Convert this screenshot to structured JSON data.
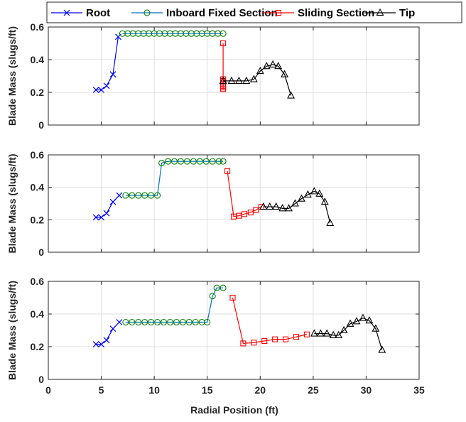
{
  "chart_data": {
    "type": "line",
    "legend": {
      "placement": "top",
      "entries": [
        {
          "name": "Root",
          "color": "#0000ff",
          "marker": "x"
        },
        {
          "name": "Inboard Fixed Section",
          "color": "#0072bd",
          "marker_color": "#008000",
          "marker": "circle"
        },
        {
          "name": "Sliding Section",
          "color": "#ff0000",
          "marker": "square"
        },
        {
          "name": "Tip",
          "color": "#000000",
          "marker": "triangle"
        }
      ]
    },
    "xlabel": "Radial Position (ft)",
    "xlim": [
      0,
      35
    ],
    "xticks": [
      0,
      5,
      10,
      15,
      20,
      25,
      30,
      35
    ],
    "grid": true,
    "subplots": [
      {
        "ylabel": "Blade Mass (slugs/ft)",
        "ylim": [
          0,
          0.6
        ],
        "yticks": [
          0,
          0.2,
          0.4,
          0.6
        ],
        "series": [
          {
            "name": "Root",
            "x": [
              4.5,
              5.0,
              5.5,
              6.1,
              6.6
            ],
            "y": [
              0.215,
              0.215,
              0.24,
              0.31,
              0.54
            ]
          },
          {
            "name": "Inboard Fixed Section",
            "x": [
              7.0,
              7.5,
              8.0,
              8.5,
              9.0,
              9.5,
              10.0,
              10.5,
              11.0,
              11.5,
              12.0,
              12.5,
              13.0,
              13.5,
              14.0,
              14.5,
              15.0,
              15.5,
              16.0,
              16.5
            ],
            "y": [
              0.56,
              0.56,
              0.56,
              0.56,
              0.56,
              0.56,
              0.56,
              0.56,
              0.56,
              0.56,
              0.56,
              0.56,
              0.56,
              0.56,
              0.56,
              0.56,
              0.56,
              0.56,
              0.56,
              0.56
            ]
          },
          {
            "name": "Sliding Section",
            "x": [
              16.5,
              16.5,
              16.5,
              16.5,
              16.5,
              16.5,
              16.5,
              16.5
            ],
            "y": [
              0.5,
              0.28,
              0.27,
              0.26,
              0.25,
              0.24,
              0.23,
              0.22
            ]
          },
          {
            "name": "Tip",
            "x": [
              16.5,
              17.3,
              18.0,
              18.7,
              19.4,
              20.0,
              20.6,
              21.2,
              21.7,
              22.3,
              22.9
            ],
            "y": [
              0.27,
              0.27,
              0.27,
              0.27,
              0.28,
              0.33,
              0.36,
              0.37,
              0.36,
              0.31,
              0.18
            ]
          }
        ]
      },
      {
        "ylabel": "Blade Mass (slugs/ft)",
        "ylim": [
          0,
          0.6
        ],
        "yticks": [
          0,
          0.2,
          0.4,
          0.6
        ],
        "series": [
          {
            "name": "Root",
            "x": [
              4.5,
              5.0,
              5.5,
              6.1,
              6.7
            ],
            "y": [
              0.215,
              0.215,
              0.24,
              0.31,
              0.35
            ]
          },
          {
            "name": "Inboard Fixed Section",
            "x": [
              7.3,
              7.9,
              8.5,
              9.1,
              9.7,
              10.3,
              10.7,
              11.3,
              11.9,
              12.5,
              13.1,
              13.7,
              14.3,
              14.9,
              15.5,
              16.1,
              16.5
            ],
            "y": [
              0.35,
              0.35,
              0.35,
              0.35,
              0.35,
              0.35,
              0.55,
              0.56,
              0.56,
              0.56,
              0.56,
              0.56,
              0.56,
              0.56,
              0.56,
              0.56,
              0.56
            ]
          },
          {
            "name": "Sliding Section",
            "x": [
              16.9,
              17.5,
              18.0,
              18.5,
              19.1,
              19.6,
              20.1
            ],
            "y": [
              0.5,
              0.22,
              0.225,
              0.235,
              0.245,
              0.26,
              0.28
            ]
          },
          {
            "name": "Tip",
            "x": [
              20.3,
              20.9,
              21.5,
              22.1,
              22.7,
              23.3,
              23.9,
              24.5,
              25.1,
              25.6,
              26.1,
              26.6
            ],
            "y": [
              0.28,
              0.28,
              0.28,
              0.27,
              0.27,
              0.3,
              0.33,
              0.355,
              0.375,
              0.36,
              0.31,
              0.18
            ]
          }
        ]
      },
      {
        "ylabel": "Blade Mass (slugs/ft)",
        "ylim": [
          0,
          0.6
        ],
        "yticks": [
          0,
          0.2,
          0.4,
          0.6
        ],
        "series": [
          {
            "name": "Root",
            "x": [
              4.5,
              5.0,
              5.5,
              6.1,
              6.7
            ],
            "y": [
              0.215,
              0.215,
              0.24,
              0.31,
              0.35
            ]
          },
          {
            "name": "Inboard Fixed Section",
            "x": [
              7.3,
              7.9,
              8.5,
              9.1,
              9.7,
              10.3,
              10.9,
              11.5,
              12.1,
              12.7,
              13.3,
              13.9,
              14.5,
              15.0,
              15.5,
              15.9,
              16.5
            ],
            "y": [
              0.35,
              0.35,
              0.35,
              0.35,
              0.35,
              0.35,
              0.35,
              0.35,
              0.35,
              0.35,
              0.35,
              0.35,
              0.35,
              0.35,
              0.51,
              0.56,
              0.56
            ]
          },
          {
            "name": "Sliding Section",
            "x": [
              17.4,
              18.4,
              19.4,
              20.4,
              21.4,
              22.4,
              23.4,
              24.4
            ],
            "y": [
              0.5,
              0.22,
              0.225,
              0.235,
              0.245,
              0.245,
              0.26,
              0.275
            ]
          },
          {
            "name": "Tip",
            "x": [
              25.1,
              25.7,
              26.3,
              26.9,
              27.4,
              27.9,
              28.5,
              29.1,
              29.7,
              30.3,
              30.9,
              31.5
            ],
            "y": [
              0.28,
              0.28,
              0.28,
              0.27,
              0.27,
              0.3,
              0.34,
              0.355,
              0.375,
              0.36,
              0.31,
              0.18
            ]
          }
        ]
      }
    ]
  }
}
